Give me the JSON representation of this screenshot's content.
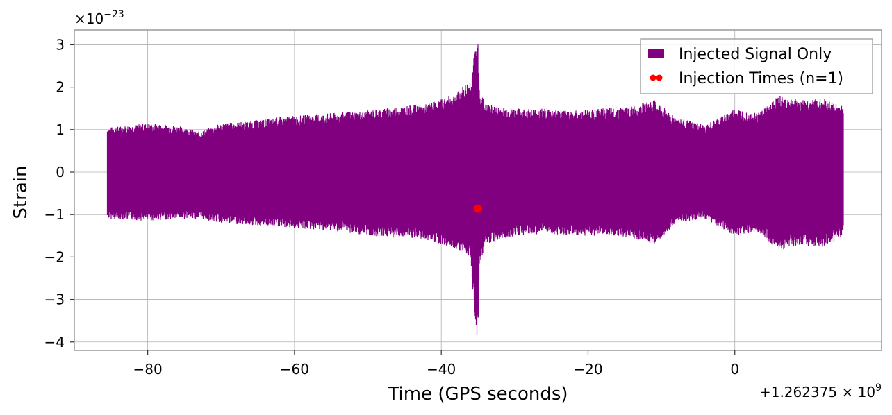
{
  "chart_data": {
    "type": "line",
    "xlabel": "Time (GPS seconds)",
    "ylabel": "Strain",
    "x_offset_label": "+1.262375 × 10",
    "x_offset_exp": "9",
    "y_multiplier_label": "×10",
    "y_multiplier_exp": "−23",
    "xlim": [
      -90,
      20
    ],
    "ylim": [
      -4.2,
      3.35
    ],
    "x_ticks": [
      -80,
      -60,
      -40,
      -20,
      0
    ],
    "x_tick_labels": [
      "−80",
      "−60",
      "−40",
      "−20",
      "0"
    ],
    "y_ticks": [
      3,
      2,
      1,
      0,
      -1,
      -2,
      -3,
      -4
    ],
    "y_tick_labels": [
      "3",
      "2",
      "1",
      "0",
      "−1",
      "−2",
      "−3",
      "−4"
    ],
    "grid": true,
    "legend_position": "top-right",
    "series": [
      {
        "name": "Injected Signal Only",
        "kind": "line",
        "color": "#800080",
        "x_range": [
          -85.5,
          14.8
        ],
        "envelope_x": [
          -85.5,
          -80,
          -76,
          -73,
          -70,
          -66,
          -62,
          -58,
          -54,
          -50,
          -46,
          -42,
          -38,
          -36,
          -35.3,
          -35.0,
          -34.8,
          -34,
          -30,
          -26,
          -22,
          -18,
          -14,
          -11,
          -8,
          -4,
          0,
          3,
          6,
          9,
          12,
          14.8
        ],
        "envelope_upper": [
          1.05,
          1.15,
          1.1,
          0.95,
          1.15,
          1.2,
          1.3,
          1.35,
          1.4,
          1.45,
          1.55,
          1.6,
          1.85,
          2.2,
          3.0,
          3.05,
          2.0,
          1.6,
          1.5,
          1.5,
          1.45,
          1.5,
          1.55,
          1.7,
          1.3,
          1.1,
          1.5,
          1.4,
          1.8,
          1.7,
          1.75,
          1.55
        ],
        "envelope_lower": [
          -1.1,
          -1.15,
          -1.1,
          -1.1,
          -1.2,
          -1.25,
          -1.3,
          -1.35,
          -1.4,
          -1.5,
          -1.55,
          -1.6,
          -1.8,
          -2.0,
          -3.85,
          -3.9,
          -2.2,
          -1.7,
          -1.5,
          -1.45,
          -1.5,
          -1.5,
          -1.55,
          -1.7,
          -1.2,
          -1.1,
          -1.5,
          -1.4,
          -1.85,
          -1.7,
          -1.8,
          -1.5
        ]
      },
      {
        "name": "Injection Times (n=1)",
        "kind": "scatter",
        "color": "#ff0000",
        "points": [
          {
            "x": -35,
            "y": -0.86
          }
        ]
      }
    ]
  }
}
